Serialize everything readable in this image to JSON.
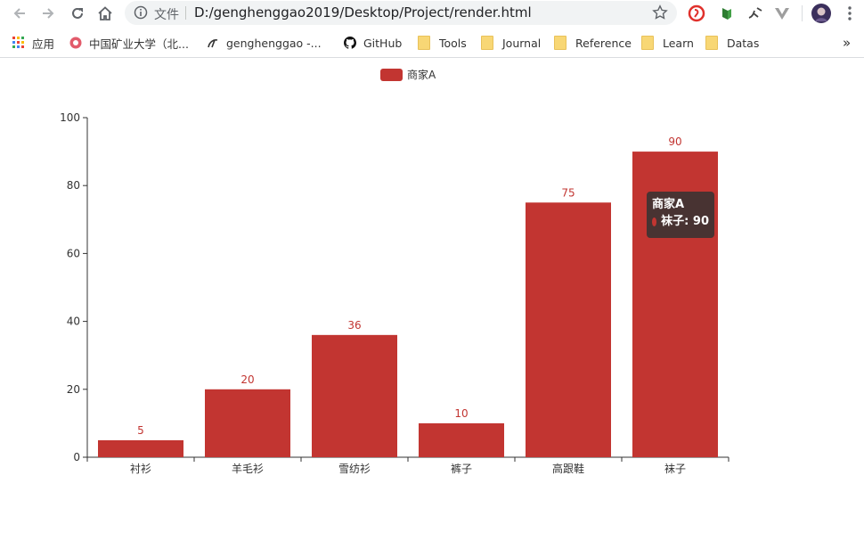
{
  "browser": {
    "file_label": "文件",
    "url": "D:/genghenggao2019/Desktop/Project/render.html",
    "bookmarks": [
      {
        "label": "应用",
        "icon": "apps-grid-icon"
      },
      {
        "label": "中国矿业大学（北...",
        "icon": "university-icon"
      },
      {
        "label": "genghenggao -...",
        "icon": "csdn-icon"
      },
      {
        "label": "GitHub",
        "icon": "github-icon"
      },
      {
        "label": "Tools",
        "icon": "folder-icon"
      },
      {
        "label": "Journal",
        "icon": "folder-icon"
      },
      {
        "label": "Reference",
        "icon": "folder-icon"
      },
      {
        "label": "Learn",
        "icon": "folder-icon"
      },
      {
        "label": "Datas",
        "icon": "folder-icon"
      }
    ],
    "overflow_label": "»"
  },
  "colors": {
    "bar": "#c23531",
    "axis": "#333333",
    "tooltip_bg": "rgba(50,50,50,0.85)"
  },
  "chart_data": {
    "type": "bar",
    "categories": [
      "衬衫",
      "羊毛衫",
      "雪纺衫",
      "裤子",
      "高跟鞋",
      "袜子"
    ],
    "series": [
      {
        "name": "商家A",
        "values": [
          5,
          20,
          36,
          10,
          75,
          90
        ]
      }
    ],
    "y_ticks": [
      0,
      20,
      40,
      60,
      80,
      100
    ],
    "ylim": [
      0,
      100
    ],
    "legend_position": "top-center",
    "grid": false,
    "data_labels": true
  },
  "tooltip": {
    "series_name": "商家A",
    "item_text": "袜子: 90"
  }
}
